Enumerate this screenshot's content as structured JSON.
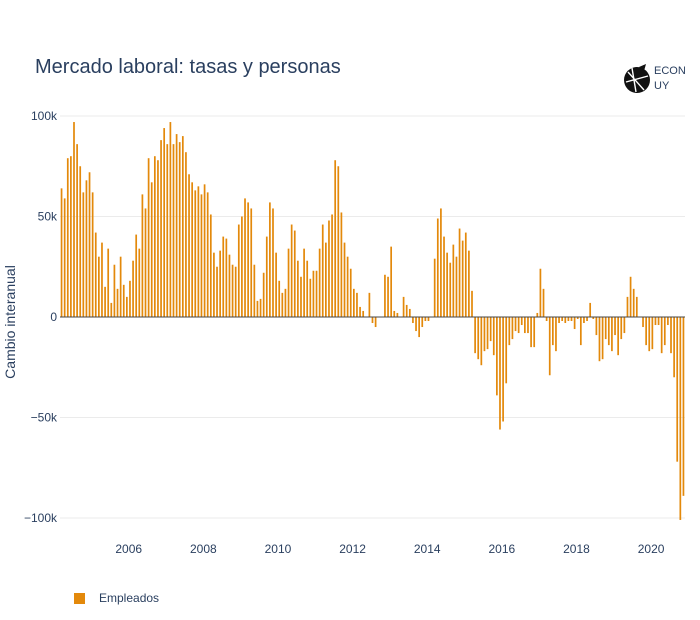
{
  "title": "Mercado laboral: tasas y personas",
  "logo": {
    "line1": "ECON",
    "line2": "UY",
    "icon": "econ-uy-logo-icon"
  },
  "colors": {
    "bar": "#E3890B",
    "grid": "#EBEBEB",
    "zero": "#444444",
    "text": "#2a3f5f"
  },
  "chart_data": {
    "type": "bar",
    "ylabel": "Cambio interanual",
    "ylim": [
      -105000,
      100000
    ],
    "yticks": [
      100000,
      50000,
      0,
      -50000,
      -100000
    ],
    "ytick_labels": [
      "100k",
      "50k",
      "0",
      "−50k",
      "−100k"
    ],
    "xticks": [
      2006,
      2008,
      2010,
      2012,
      2014,
      2016,
      2018,
      2020
    ],
    "xtick_labels": [
      "2006",
      "2008",
      "2010",
      "2012",
      "2014",
      "2016",
      "2018",
      "2020"
    ],
    "x_start": 2004.2,
    "x_step": 0.0833333,
    "legend": "bottom-left",
    "series": [
      {
        "name": "Empleados",
        "values": [
          64000,
          59000,
          79000,
          80000,
          97000,
          86000,
          75000,
          62000,
          68000,
          72000,
          62000,
          42000,
          30000,
          37000,
          15000,
          34000,
          7000,
          26000,
          14000,
          30000,
          16000,
          10000,
          18000,
          28000,
          41000,
          34000,
          61000,
          54000,
          79000,
          67000,
          80000,
          78000,
          88000,
          94000,
          86000,
          97000,
          86000,
          91000,
          87000,
          90000,
          82000,
          71000,
          67000,
          63000,
          65000,
          61000,
          66000,
          62000,
          51000,
          32000,
          25000,
          33000,
          40000,
          39000,
          31000,
          26000,
          25000,
          46000,
          50000,
          59000,
          57000,
          54000,
          26000,
          8000,
          9000,
          22000,
          40000,
          57000,
          54000,
          32000,
          18000,
          12000,
          14000,
          34000,
          46000,
          43000,
          28000,
          20000,
          34000,
          28000,
          19000,
          23000,
          23000,
          34000,
          46000,
          37000,
          48000,
          51000,
          78000,
          75000,
          52000,
          37000,
          30000,
          24000,
          14000,
          12000,
          5000,
          3000,
          0,
          12000,
          -3000,
          -5000,
          0,
          0,
          21000,
          20000,
          35000,
          3000,
          2000,
          0,
          10000,
          6000,
          4000,
          -3000,
          -7000,
          -10000,
          -5000,
          -2000,
          -2000,
          0,
          29000,
          49000,
          54000,
          40000,
          32000,
          27000,
          36000,
          30000,
          44000,
          38000,
          42000,
          33000,
          13000,
          -18000,
          -21000,
          -24000,
          -17000,
          -16000,
          -12000,
          -19000,
          -39000,
          -56000,
          -52000,
          -33000,
          -14000,
          -11000,
          -7000,
          -8000,
          -4000,
          -8000,
          -8000,
          -15000,
          -15000,
          2000,
          24000,
          14000,
          -2000,
          -29000,
          -14000,
          -17000,
          -3000,
          -2000,
          -3000,
          -2000,
          -2000,
          -6000,
          -1000,
          -14000,
          -3000,
          -2000,
          7000,
          -1000,
          -9000,
          -22000,
          -21000,
          -11000,
          -14000,
          -17000,
          -9000,
          -19000,
          -11000,
          -8000,
          10000,
          20000,
          14000,
          10000,
          0,
          -5000,
          -14000,
          -17000,
          -16000,
          -4000,
          -4000,
          -18000,
          -14000,
          -4000,
          -18000,
          -30000,
          -72000,
          -101000,
          -89000
        ]
      }
    ]
  }
}
